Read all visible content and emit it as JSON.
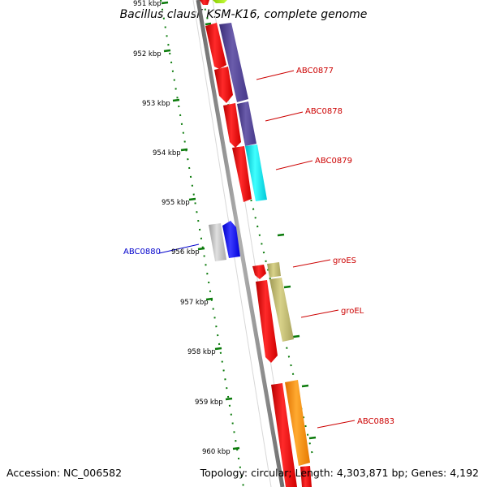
{
  "title": "Bacillus clausii KSM-K16, complete genome",
  "accession": "Accession: NC_006582",
  "topology": "Topology: circular; Length: 4,303,871 bp; Genes: 4,192",
  "ticks": [
    "951 kbp",
    "952 kbp",
    "953 kbp",
    "954 kbp",
    "955 kbp",
    "956 kbp",
    "957 kbp",
    "958 kbp",
    "959 kbp",
    "960 kbp"
  ],
  "colors": {
    "feature_red": "#ff0000",
    "cds_purple": "#4f3f8f",
    "cds_cyan": "#00e5ee",
    "cds_khaki": "#bdb76b",
    "cds_orange": "#ff8c00",
    "cds_blue": "#0000ff",
    "cds_gray": "#b8b8b8",
    "ruler_green": "#0a7a0a",
    "label_red": "#cc0000",
    "label_blue": "#0000cc"
  },
  "labels": [
    {
      "name": "ABC0877",
      "color": "label_red"
    },
    {
      "name": "ABC0878",
      "color": "label_red"
    },
    {
      "name": "ABC0879",
      "color": "label_red"
    },
    {
      "name": "ABC0880",
      "color": "label_blue"
    },
    {
      "name": "groES",
      "color": "label_red"
    },
    {
      "name": "groEL",
      "color": "label_red"
    },
    {
      "name": "ABC0883",
      "color": "label_red"
    }
  ]
}
